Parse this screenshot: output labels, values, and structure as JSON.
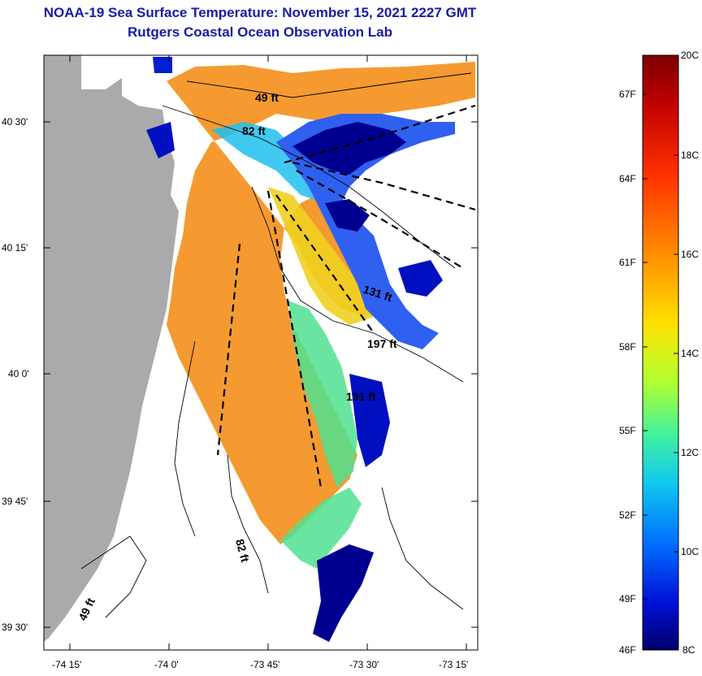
{
  "title": "NOAA-19 Sea Surface Temperature:  November 15, 2021 2227 GMT",
  "subtitle": "Rutgers Coastal Ocean Observation Lab",
  "axes": {
    "lat_ticks": [
      "40 30'",
      "40 15'",
      "40 0'",
      "39 45'",
      "39 30'"
    ],
    "lon_ticks": [
      "-74 15'",
      "-74 0'",
      "-73 45'",
      "-73 30'",
      "-73 15'"
    ]
  },
  "depth_labels": [
    "49 ft",
    "82 ft",
    "131 ft",
    "197 ft",
    "131 ft",
    "82 ft",
    "49 ft"
  ],
  "colorbar": {
    "f_labels": [
      "67F",
      "64F",
      "61F",
      "58F",
      "55F",
      "52F",
      "49F",
      "46F"
    ],
    "c_labels": [
      "20C",
      "18C",
      "16C",
      "14C",
      "12C",
      "10C",
      "8C"
    ],
    "stops": [
      "#7a0000",
      "#d40000",
      "#ff5000",
      "#ffa000",
      "#f0e000",
      "#a0ff40",
      "#40f0b0",
      "#20c0ff",
      "#0070ff",
      "#0010d0",
      "#000080"
    ]
  },
  "colors": {
    "land": "#aaaaaa",
    "sst_warm": "#f59a30",
    "sst_mid": "#f0d020",
    "sst_cool": "#3070ff",
    "sst_cold": "#000090"
  }
}
